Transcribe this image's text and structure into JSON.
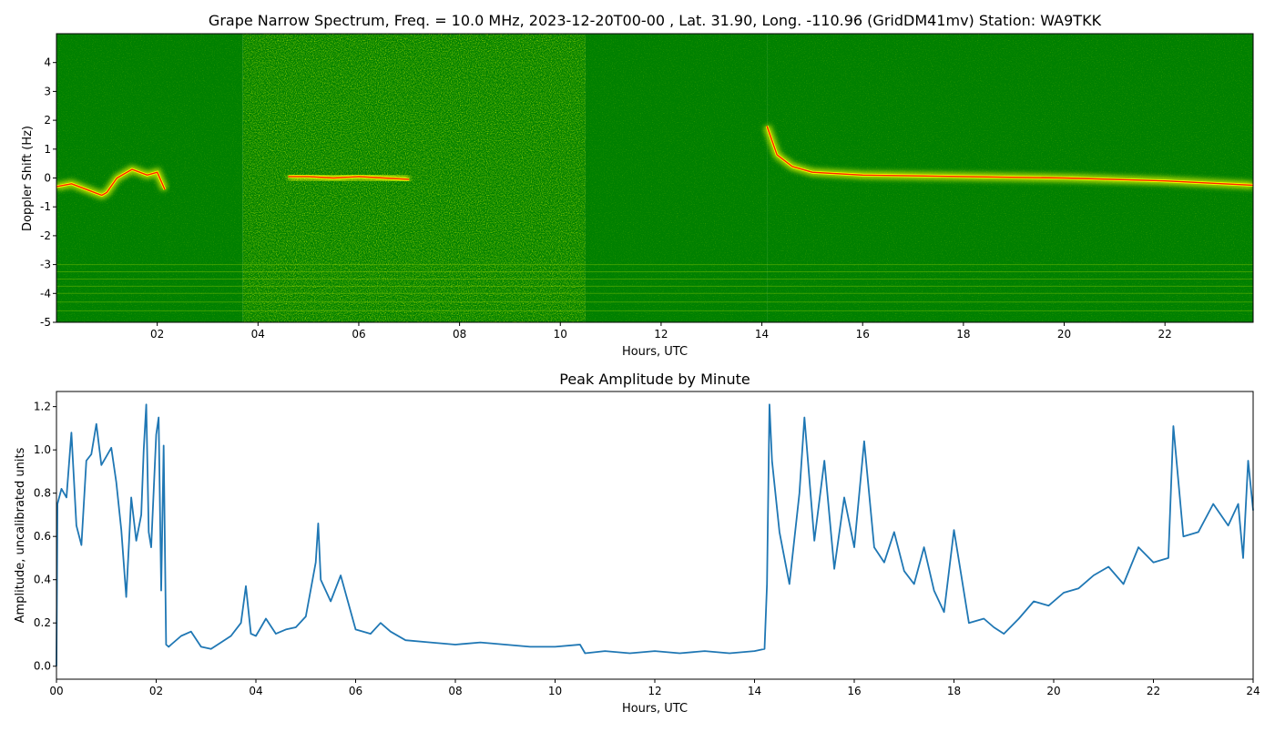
{
  "chart_data": [
    {
      "type": "heatmap",
      "title": "Grape Narrow Spectrum, Freq. = 10.0 MHz, 2023-12-20T00-00 , Lat.  31.90, Long. -110.96 (GridDM41mv) Station: WA9TKK",
      "xlabel": "Hours, UTC",
      "ylabel": "Doppler Shift (Hz)",
      "xlim": [
        0,
        23.75
      ],
      "ylim": [
        -5,
        5
      ],
      "x_ticks": [
        2,
        4,
        6,
        8,
        10,
        12,
        14,
        16,
        18,
        20,
        22
      ],
      "x_tick_labels": [
        "02",
        "04",
        "06",
        "08",
        "10",
        "12",
        "14",
        "16",
        "18",
        "20",
        "22"
      ],
      "y_ticks": [
        -5,
        -4,
        -3,
        -2,
        -1,
        0,
        1,
        2,
        3,
        4
      ],
      "y_tick_labels": [
        "-5",
        "-4",
        "-3",
        "-2",
        "-1",
        "0",
        "1",
        "2",
        "3",
        "4"
      ],
      "colors": {
        "background": "#008000",
        "noise": "#8cc800",
        "signal": "#ffff00",
        "peak": "#ff2000"
      },
      "background_segments": [
        {
          "x": [
            0,
            3.7
          ],
          "level": "dark"
        },
        {
          "x": [
            3.7,
            10.5
          ],
          "level": "light"
        },
        {
          "x": [
            10.5,
            14.1
          ],
          "level": "dark"
        },
        {
          "x": [
            14.1,
            23.75
          ],
          "level": "dark"
        }
      ],
      "carrier_trace": [
        {
          "x": [
            0,
            0.3,
            0.6,
            0.9,
            1.0,
            1.2,
            1.5,
            1.8,
            2.0,
            2.15
          ],
          "y": [
            -0.3,
            -0.2,
            -0.4,
            -0.6,
            -0.5,
            0.0,
            0.3,
            0.1,
            0.2,
            -0.4
          ]
        },
        {
          "x": [
            4.6,
            5.0,
            5.5,
            6.0,
            6.5,
            7.0
          ],
          "y": [
            0.05,
            0.05,
            0.0,
            0.05,
            0.0,
            -0.05
          ]
        },
        {
          "x": [
            14.1,
            14.3,
            14.6,
            15.0,
            16.0,
            18.0,
            20.0,
            22.0,
            23.75
          ],
          "y": [
            1.8,
            0.8,
            0.4,
            0.2,
            0.1,
            0.05,
            0.0,
            -0.1,
            -0.25
          ]
        }
      ]
    },
    {
      "type": "line",
      "title": "Peak Amplitude by Minute",
      "xlabel": "Hours, UTC",
      "ylabel": "Amplitude, uncalibrated units",
      "xlim": [
        0,
        24
      ],
      "ylim": [
        -0.06,
        1.27
      ],
      "x_ticks": [
        0,
        2,
        4,
        6,
        8,
        10,
        12,
        14,
        16,
        18,
        20,
        22,
        24
      ],
      "x_tick_labels": [
        "00",
        "02",
        "04",
        "06",
        "08",
        "10",
        "12",
        "14",
        "16",
        "18",
        "20",
        "22",
        "24"
      ],
      "y_ticks": [
        0,
        0.2,
        0.4,
        0.6,
        0.8,
        1.0,
        1.2
      ],
      "y_tick_labels": [
        "0.0",
        "0.2",
        "0.4",
        "0.6",
        "0.8",
        "1.0",
        "1.2"
      ],
      "line_color": "#1f77b4",
      "x": [
        0,
        0.02,
        0.1,
        0.2,
        0.3,
        0.4,
        0.5,
        0.6,
        0.7,
        0.8,
        0.9,
        1.0,
        1.1,
        1.2,
        1.3,
        1.4,
        1.45,
        1.5,
        1.6,
        1.7,
        1.75,
        1.8,
        1.85,
        1.9,
        2.0,
        2.05,
        2.1,
        2.15,
        2.2,
        2.25,
        2.3,
        2.5,
        2.7,
        2.9,
        3.1,
        3.3,
        3.5,
        3.7,
        3.8,
        3.9,
        4.0,
        4.2,
        4.4,
        4.6,
        4.8,
        5.0,
        5.2,
        5.25,
        5.3,
        5.5,
        5.7,
        6.0,
        6.3,
        6.5,
        6.7,
        7.0,
        7.5,
        8.0,
        8.5,
        9.0,
        9.5,
        10.0,
        10.5,
        10.6,
        11.0,
        11.5,
        12.0,
        12.5,
        13.0,
        13.5,
        14.0,
        14.2,
        14.25,
        14.3,
        14.35,
        14.5,
        14.7,
        14.9,
        15.0,
        15.2,
        15.4,
        15.6,
        15.8,
        16.0,
        16.2,
        16.4,
        16.6,
        16.8,
        17.0,
        17.2,
        17.4,
        17.6,
        17.8,
        18.0,
        18.3,
        18.6,
        18.8,
        19.0,
        19.3,
        19.6,
        19.9,
        20.2,
        20.5,
        20.8,
        21.1,
        21.4,
        21.7,
        22.0,
        22.3,
        22.4,
        22.6,
        22.9,
        23.2,
        23.5,
        23.7,
        23.8,
        23.9,
        24.0
      ],
      "y": [
        0.0,
        0.75,
        0.82,
        0.78,
        1.08,
        0.65,
        0.56,
        0.95,
        0.98,
        1.12,
        0.93,
        0.97,
        1.01,
        0.85,
        0.63,
        0.32,
        0.55,
        0.78,
        0.58,
        0.7,
        1.0,
        1.21,
        0.62,
        0.55,
        1.07,
        1.15,
        0.35,
        1.02,
        0.1,
        0.09,
        0.1,
        0.14,
        0.16,
        0.09,
        0.08,
        0.11,
        0.14,
        0.2,
        0.37,
        0.15,
        0.14,
        0.22,
        0.15,
        0.17,
        0.18,
        0.23,
        0.48,
        0.66,
        0.4,
        0.3,
        0.42,
        0.17,
        0.15,
        0.2,
        0.16,
        0.12,
        0.11,
        0.1,
        0.11,
        0.1,
        0.09,
        0.09,
        0.1,
        0.06,
        0.07,
        0.06,
        0.07,
        0.06,
        0.07,
        0.06,
        0.07,
        0.08,
        0.38,
        1.21,
        0.95,
        0.62,
        0.38,
        0.8,
        1.15,
        0.58,
        0.95,
        0.45,
        0.78,
        0.55,
        1.04,
        0.55,
        0.48,
        0.62,
        0.44,
        0.38,
        0.55,
        0.35,
        0.25,
        0.63,
        0.2,
        0.22,
        0.18,
        0.15,
        0.22,
        0.3,
        0.28,
        0.34,
        0.36,
        0.42,
        0.46,
        0.38,
        0.55,
        0.48,
        0.5,
        1.11,
        0.6,
        0.62,
        0.75,
        0.65,
        0.75,
        0.5,
        0.95,
        0.72
      ]
    }
  ]
}
